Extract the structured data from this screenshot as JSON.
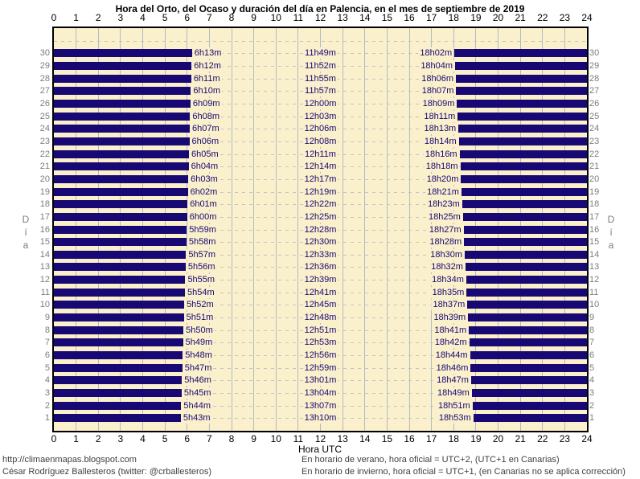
{
  "title": "Hora del Orto, del Ocaso y duración del día en Palencia, en el mes de septiembre de 2019",
  "axis": {
    "x_label": "Hora UTC",
    "y_label": "Día",
    "y_label_chars": [
      "D",
      "í",
      "a"
    ]
  },
  "footer": {
    "url": "http://climaenmapas.blogspot.com",
    "author": "César Rodríguez Ballesteros (twitter: @crballesteros)",
    "note_summer": "En horario de verano, hora oficial = UTC+2, (UTC+1 en Canarias)",
    "note_winter": "En horario de invierno, hora oficial = UTC+1, (en Canarias no se aplica corrección)"
  },
  "colors": {
    "bar": "#170873",
    "plot_bg": "#FAF0CC",
    "grid": "#b4bac2",
    "dash": "#c4c4c4",
    "time_label": "#170873",
    "day_number": "#7d7d7d",
    "y_label": "#7d7d7d",
    "footer_text": "#3f3f3f"
  },
  "chart_data": {
    "type": "bar",
    "orientation": "horizontal",
    "title": "Hora del Orto, del Ocaso y duración del día en Palencia, en el mes de septiembre de 2019",
    "xlabel": "Hora UTC",
    "ylabel": "Día",
    "xlim_hours": [
      0,
      24
    ],
    "ylim_days": [
      0,
      32
    ],
    "hour_ticks": [
      0,
      1,
      2,
      3,
      4,
      5,
      6,
      7,
      8,
      9,
      10,
      11,
      12,
      13,
      14,
      15,
      16,
      17,
      18,
      19,
      20,
      21,
      22,
      23,
      24
    ],
    "grid": "hour gridlines solid, per-day dashed lines",
    "legend_position": "none",
    "bars_meaning": "navy bars span night hours (00:00 to sunrise, sunset to 24:00); cream gap is daylight",
    "days": [
      {
        "day": 1,
        "sunrise": "5h43m",
        "daylight": "13h10m",
        "sunset": "18h53m"
      },
      {
        "day": 2,
        "sunrise": "5h44m",
        "daylight": "13h07m",
        "sunset": "18h51m"
      },
      {
        "day": 3,
        "sunrise": "5h45m",
        "daylight": "13h04m",
        "sunset": "18h49m"
      },
      {
        "day": 4,
        "sunrise": "5h46m",
        "daylight": "13h01m",
        "sunset": "18h47m"
      },
      {
        "day": 5,
        "sunrise": "5h47m",
        "daylight": "12h59m",
        "sunset": "18h46m"
      },
      {
        "day": 6,
        "sunrise": "5h48m",
        "daylight": "12h56m",
        "sunset": "18h44m"
      },
      {
        "day": 7,
        "sunrise": "5h49m",
        "daylight": "12h53m",
        "sunset": "18h42m"
      },
      {
        "day": 8,
        "sunrise": "5h50m",
        "daylight": "12h51m",
        "sunset": "18h41m"
      },
      {
        "day": 9,
        "sunrise": "5h51m",
        "daylight": "12h48m",
        "sunset": "18h39m"
      },
      {
        "day": 10,
        "sunrise": "5h52m",
        "daylight": "12h45m",
        "sunset": "18h37m"
      },
      {
        "day": 11,
        "sunrise": "5h54m",
        "daylight": "12h41m",
        "sunset": "18h35m"
      },
      {
        "day": 12,
        "sunrise": "5h55m",
        "daylight": "12h39m",
        "sunset": "18h34m"
      },
      {
        "day": 13,
        "sunrise": "5h56m",
        "daylight": "12h36m",
        "sunset": "18h32m"
      },
      {
        "day": 14,
        "sunrise": "5h57m",
        "daylight": "12h33m",
        "sunset": "18h30m"
      },
      {
        "day": 15,
        "sunrise": "5h58m",
        "daylight": "12h30m",
        "sunset": "18h28m"
      },
      {
        "day": 16,
        "sunrise": "5h59m",
        "daylight": "12h28m",
        "sunset": "18h27m"
      },
      {
        "day": 17,
        "sunrise": "6h00m",
        "daylight": "12h25m",
        "sunset": "18h25m"
      },
      {
        "day": 18,
        "sunrise": "6h01m",
        "daylight": "12h22m",
        "sunset": "18h23m"
      },
      {
        "day": 19,
        "sunrise": "6h02m",
        "daylight": "12h19m",
        "sunset": "18h21m"
      },
      {
        "day": 20,
        "sunrise": "6h03m",
        "daylight": "12h17m",
        "sunset": "18h20m"
      },
      {
        "day": 21,
        "sunrise": "6h04m",
        "daylight": "12h14m",
        "sunset": "18h18m"
      },
      {
        "day": 22,
        "sunrise": "6h05m",
        "daylight": "12h11m",
        "sunset": "18h16m"
      },
      {
        "day": 23,
        "sunrise": "6h06m",
        "daylight": "12h08m",
        "sunset": "18h14m"
      },
      {
        "day": 24,
        "sunrise": "6h07m",
        "daylight": "12h06m",
        "sunset": "18h13m"
      },
      {
        "day": 25,
        "sunrise": "6h08m",
        "daylight": "12h03m",
        "sunset": "18h11m"
      },
      {
        "day": 26,
        "sunrise": "6h09m",
        "daylight": "12h00m",
        "sunset": "18h09m"
      },
      {
        "day": 27,
        "sunrise": "6h10m",
        "daylight": "11h57m",
        "sunset": "18h07m"
      },
      {
        "day": 28,
        "sunrise": "6h11m",
        "daylight": "11h55m",
        "sunset": "18h06m"
      },
      {
        "day": 29,
        "sunrise": "6h12m",
        "daylight": "11h52m",
        "sunset": "18h04m"
      },
      {
        "day": 30,
        "sunrise": "6h13m",
        "daylight": "11h49m",
        "sunset": "18h02m"
      }
    ]
  }
}
